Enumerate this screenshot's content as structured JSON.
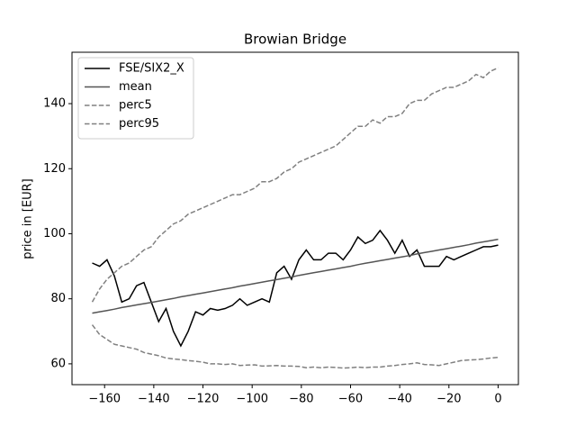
{
  "chart_data": {
    "type": "line",
    "title": "Browian Bridge",
    "y_label": "price in [EUR]",
    "x": [
      -165,
      -162,
      -159,
      -156,
      -153,
      -150,
      -147,
      -144,
      -141,
      -138,
      -135,
      -132,
      -129,
      -126,
      -123,
      -120,
      -117,
      -114,
      -111,
      -108,
      -105,
      -102,
      -99,
      -96,
      -93,
      -90,
      -87,
      -84,
      -81,
      -78,
      -75,
      -72,
      -69,
      -66,
      -63,
      -60,
      -57,
      -54,
      -51,
      -48,
      -45,
      -42,
      -39,
      -36,
      -33,
      -30,
      -27,
      -24,
      -21,
      -18,
      -15,
      -12,
      -9,
      -6,
      -3,
      0
    ],
    "series": [
      {
        "name": "FSE/SIX2_X",
        "color": "#000000",
        "dashed": false,
        "values": [
          91,
          90,
          92,
          87,
          79,
          80,
          84,
          85,
          79,
          73,
          77,
          70,
          65.5,
          70,
          76,
          75,
          77,
          76.5,
          77,
          78,
          80,
          78,
          79,
          80,
          79,
          88,
          90,
          86,
          92,
          95,
          92,
          92,
          94,
          94,
          92,
          95,
          99,
          97,
          98,
          101,
          98,
          94,
          98,
          93,
          95,
          90,
          90,
          90,
          93,
          92,
          93,
          94,
          95,
          96,
          96,
          96.5
        ]
      },
      {
        "name": "mean",
        "color": "#555555",
        "dashed": false,
        "values": [
          75.6,
          76.0,
          76.4,
          76.8,
          77.3,
          77.7,
          78.1,
          78.5,
          78.9,
          79.3,
          79.7,
          80.1,
          80.6,
          81.0,
          81.4,
          81.8,
          82.2,
          82.6,
          83.0,
          83.4,
          83.9,
          84.3,
          84.7,
          85.1,
          85.5,
          85.9,
          86.3,
          86.7,
          87.2,
          87.6,
          88.0,
          88.4,
          88.8,
          89.2,
          89.6,
          90.0,
          90.5,
          90.9,
          91.3,
          91.7,
          92.1,
          92.5,
          92.9,
          93.3,
          93.8,
          94.2,
          94.6,
          95.0,
          95.4,
          95.8,
          96.2,
          96.6,
          97.1,
          97.5,
          97.9,
          98.3
        ]
      },
      {
        "name": "perc5",
        "color": "#808080",
        "dashed": true,
        "values": [
          72,
          69,
          67.5,
          66,
          65.5,
          65,
          64.5,
          63.5,
          63,
          62.5,
          61.8,
          61.5,
          61.3,
          61,
          60.8,
          60.5,
          60,
          60,
          59.8,
          60,
          59.5,
          59.6,
          59.7,
          59.3,
          59.4,
          59.5,
          59.3,
          59.3,
          59.2,
          58.8,
          59,
          58.8,
          59,
          58.9,
          58.7,
          58.8,
          59,
          58.8,
          59,
          59,
          59.3,
          59.5,
          59.8,
          60,
          60.3,
          59.8,
          59.7,
          59.5,
          60,
          60.5,
          61,
          61.2,
          61.3,
          61.5,
          61.8,
          62
        ]
      },
      {
        "name": "perc95",
        "color": "#808080",
        "dashed": true,
        "values": [
          79,
          83,
          86,
          88,
          90,
          91,
          93,
          95,
          96,
          99,
          101,
          103,
          104,
          106,
          107,
          108,
          109,
          110,
          111,
          112,
          112,
          113,
          114,
          116,
          116,
          117,
          119,
          120,
          122,
          123,
          124,
          125,
          126,
          127,
          129,
          131,
          133,
          133,
          135,
          134,
          136,
          136,
          137,
          140,
          141,
          141,
          143,
          144,
          145,
          145,
          146,
          147,
          149,
          148,
          150,
          151
        ]
      }
    ],
    "xlim": [
      -173.25,
      8.25
    ],
    "xticks": [
      {
        "value": -160,
        "label": "−160"
      },
      {
        "value": -140,
        "label": "−140"
      },
      {
        "value": -120,
        "label": "−120"
      },
      {
        "value": -100,
        "label": "−100"
      },
      {
        "value": -80,
        "label": "−80"
      },
      {
        "value": -60,
        "label": "−60"
      },
      {
        "value": -40,
        "label": "−40"
      },
      {
        "value": -20,
        "label": "−20"
      },
      0
    ],
    "ylim": [
      53.6,
      155.8
    ],
    "yticks": [
      60,
      80,
      100,
      120,
      140
    ],
    "legend": "upper left"
  }
}
